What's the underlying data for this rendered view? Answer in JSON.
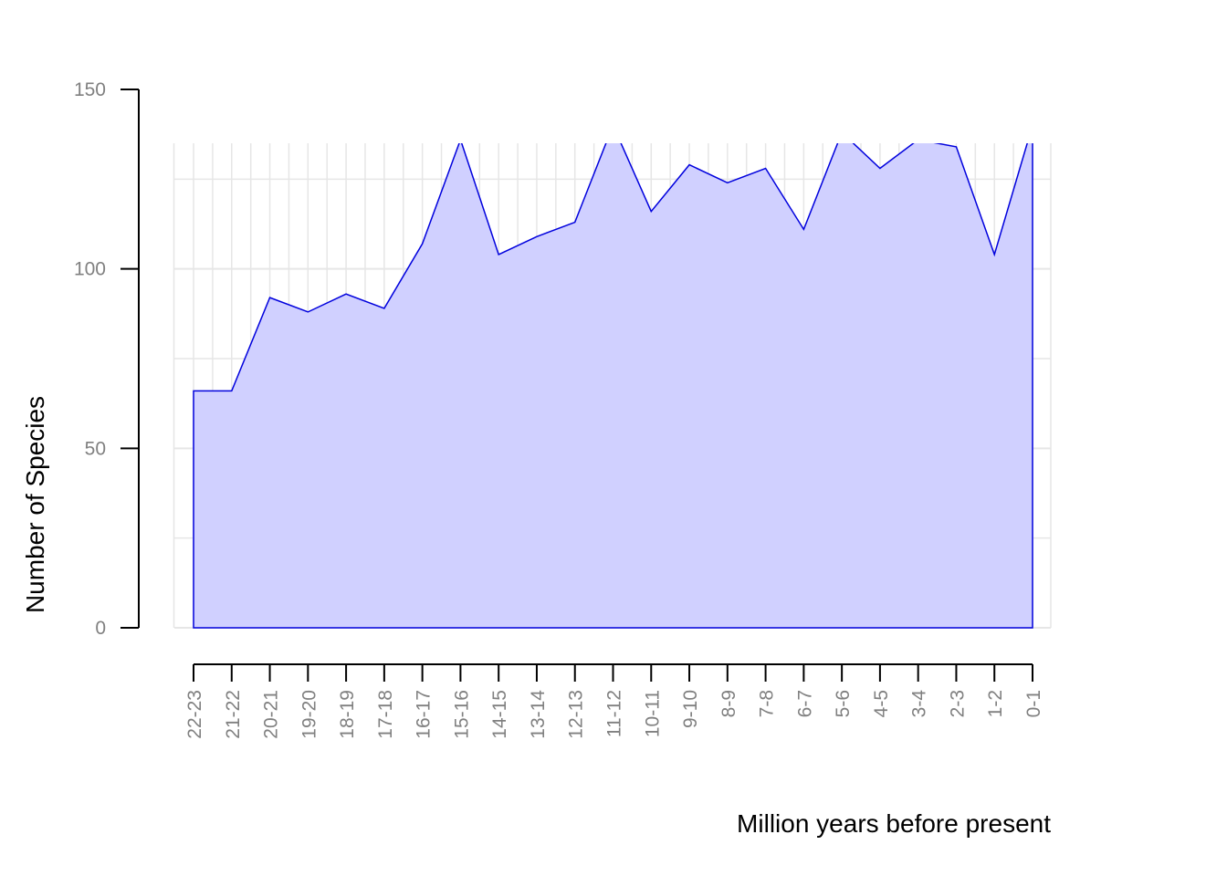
{
  "chart_data": {
    "type": "area",
    "title": "",
    "xlabel": "Million years before present",
    "ylabel": "Number of Species",
    "categories": [
      "22-23",
      "21-22",
      "20-21",
      "19-20",
      "18-19",
      "17-18",
      "16-17",
      "15-16",
      "14-15",
      "13-14",
      "12-13",
      "11-12",
      "10-11",
      "9-10",
      "8-9",
      "7-8",
      "6-7",
      "5-6",
      "4-5",
      "3-4",
      "2-3",
      "1-2",
      "0-1"
    ],
    "values": [
      66,
      66,
      92,
      88,
      93,
      89,
      107,
      136,
      104,
      109,
      113,
      140,
      116,
      129,
      124,
      128,
      111,
      138,
      128,
      136,
      134,
      104,
      140
    ],
    "ylim": [
      0,
      150
    ],
    "yticks": [
      0,
      50,
      100,
      150
    ],
    "grid": true,
    "clip_max": 135,
    "colors": {
      "fill": "#d0d0ff",
      "line": "#0000dd",
      "grid": "#e6e6e6"
    }
  }
}
